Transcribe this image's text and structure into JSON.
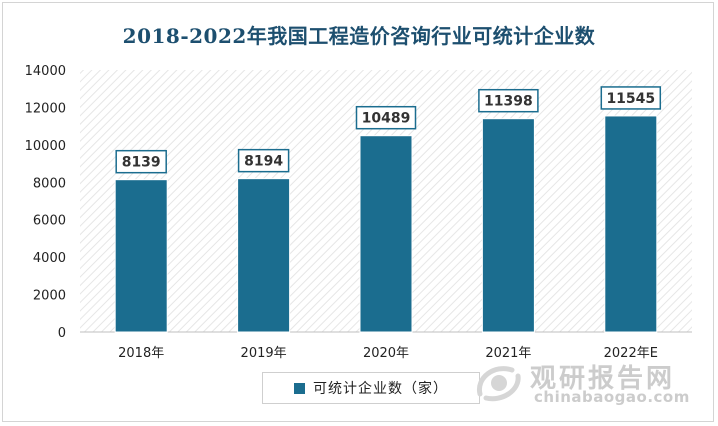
{
  "chart_data": {
    "type": "bar",
    "title": "2018-2022年我国工程造价咨询行业可统计企业数",
    "categories": [
      "2018年",
      "2019年",
      "2020年",
      "2021年",
      "2022年E"
    ],
    "series": [
      {
        "name": "可统计企业数（家）",
        "values": [
          8139,
          8194,
          10489,
          11398,
          11545
        ]
      }
    ],
    "data_labels": [
      "8139",
      "8194",
      "10489",
      "11398",
      "11545"
    ],
    "ylim": [
      0,
      14000
    ],
    "yticks": [
      "0",
      "2000",
      "4000",
      "6000",
      "8000",
      "10000",
      "12000",
      "14000"
    ],
    "grid": false,
    "legend_position": "bottom",
    "bar_color": "#1b6d8f",
    "background_pattern": "diagonal-hatch"
  },
  "watermark": {
    "name_cn": "观研报告网",
    "domain": "chinabaogao.com"
  }
}
